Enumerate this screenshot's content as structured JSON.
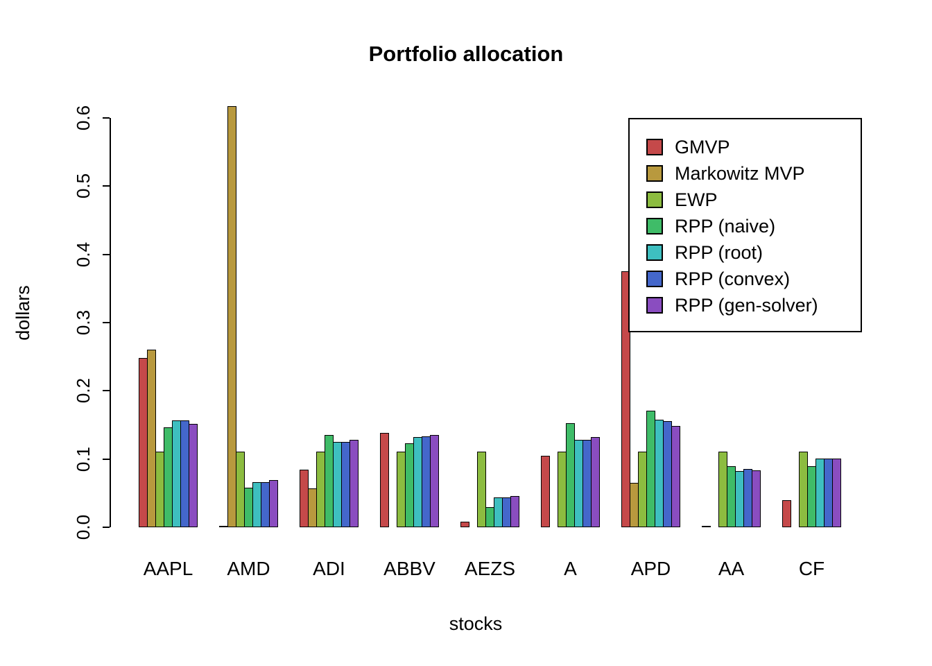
{
  "chart_data": {
    "type": "bar",
    "title": "Portfolio allocation",
    "xlabel": "stocks",
    "ylabel": "dollars",
    "ylim": [
      0,
      0.6
    ],
    "ytick_labels": [
      "0.0",
      "0.1",
      "0.2",
      "0.3",
      "0.4",
      "0.5",
      "0.6"
    ],
    "grid": false,
    "legend_position": "top-right",
    "categories": [
      "AAPL",
      "AMD",
      "ADI",
      "ABBV",
      "AEZS",
      "A",
      "APD",
      "AA",
      "CF"
    ],
    "series": [
      {
        "name": "GMVP",
        "color": "#C5494A",
        "values": [
          0.248,
          0.002,
          0.084,
          0.138,
          0.008,
          0.105,
          0.375,
          0.002,
          0.04
        ]
      },
      {
        "name": "Markowitz MVP",
        "color": "#B8993E",
        "values": [
          0.26,
          0.617,
          0.057,
          0.0,
          0.0,
          0.0,
          0.065,
          0.0,
          0.0
        ]
      },
      {
        "name": "EWP",
        "color": "#8CBC40",
        "values": [
          0.111,
          0.111,
          0.111,
          0.111,
          0.111,
          0.111,
          0.111,
          0.111,
          0.111
        ]
      },
      {
        "name": "RPP (naive)",
        "color": "#3FBC68",
        "values": [
          0.146,
          0.058,
          0.135,
          0.123,
          0.029,
          0.153,
          0.171,
          0.089,
          0.089
        ]
      },
      {
        "name": "RPP (root)",
        "color": "#3EBFC0",
        "values": [
          0.157,
          0.066,
          0.125,
          0.132,
          0.044,
          0.128,
          0.158,
          0.082,
          0.101
        ]
      },
      {
        "name": "RPP (convex)",
        "color": "#4467CB",
        "values": [
          0.157,
          0.066,
          0.125,
          0.133,
          0.044,
          0.128,
          0.156,
          0.085,
          0.101
        ]
      },
      {
        "name": "RPP (gen-solver)",
        "color": "#8A4DC0",
        "values": [
          0.152,
          0.069,
          0.128,
          0.135,
          0.046,
          0.132,
          0.148,
          0.083,
          0.101
        ]
      }
    ]
  }
}
